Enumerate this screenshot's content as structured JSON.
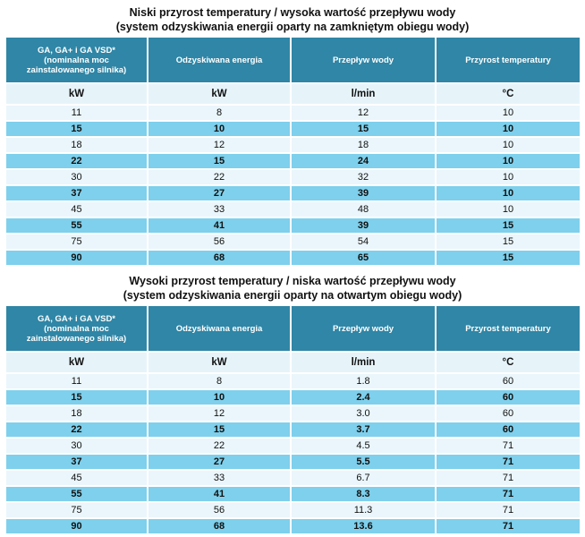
{
  "tables": [
    {
      "title_line1": "Niski przyrost temperatury / wysoka wartość przepływu wody",
      "title_line2": "(system odzyskiwania energii oparty na zamkniętym obiegu wody)",
      "headers": [
        [
          "GA, GA+ i GA VSD*",
          "(nominalna moc",
          "zainstalowanego silnika)"
        ],
        [
          "Odzyskiwana energia"
        ],
        [
          "Przepływ wody"
        ],
        [
          "Przyrost temperatury"
        ]
      ],
      "units": [
        "kW",
        "kW",
        "l/min",
        "°C"
      ],
      "rows": [
        [
          "11",
          "8",
          "12",
          "10"
        ],
        [
          "15",
          "10",
          "15",
          "10"
        ],
        [
          "18",
          "12",
          "18",
          "10"
        ],
        [
          "22",
          "15",
          "24",
          "10"
        ],
        [
          "30",
          "22",
          "32",
          "10"
        ],
        [
          "37",
          "27",
          "39",
          "10"
        ],
        [
          "45",
          "33",
          "48",
          "10"
        ],
        [
          "55",
          "41",
          "39",
          "15"
        ],
        [
          "75",
          "56",
          "54",
          "15"
        ],
        [
          "90",
          "68",
          "65",
          "15"
        ]
      ]
    },
    {
      "title_line1": "Wysoki przyrost temperatury / niska wartość przepływu wody",
      "title_line2": "(system odzyskiwania energii oparty na otwartym obiegu wody)",
      "headers": [
        [
          "GA, GA+ i GA VSD*",
          "(nominalna moc",
          "zainstalowanego silnika)"
        ],
        [
          "Odzyskiwana energia"
        ],
        [
          "Przepływ wody"
        ],
        [
          "Przyrost temperatury"
        ]
      ],
      "units": [
        "kW",
        "kW",
        "l/min",
        "°C"
      ],
      "rows": [
        [
          "11",
          "8",
          "1.8",
          "60"
        ],
        [
          "15",
          "10",
          "2.4",
          "60"
        ],
        [
          "18",
          "12",
          "3.0",
          "60"
        ],
        [
          "22",
          "15",
          "3.7",
          "60"
        ],
        [
          "30",
          "22",
          "4.5",
          "71"
        ],
        [
          "37",
          "27",
          "5.5",
          "71"
        ],
        [
          "45",
          "33",
          "6.7",
          "71"
        ],
        [
          "55",
          "41",
          "8.3",
          "71"
        ],
        [
          "75",
          "56",
          "11.3",
          "71"
        ],
        [
          "90",
          "68",
          "13.6",
          "71"
        ]
      ]
    }
  ]
}
